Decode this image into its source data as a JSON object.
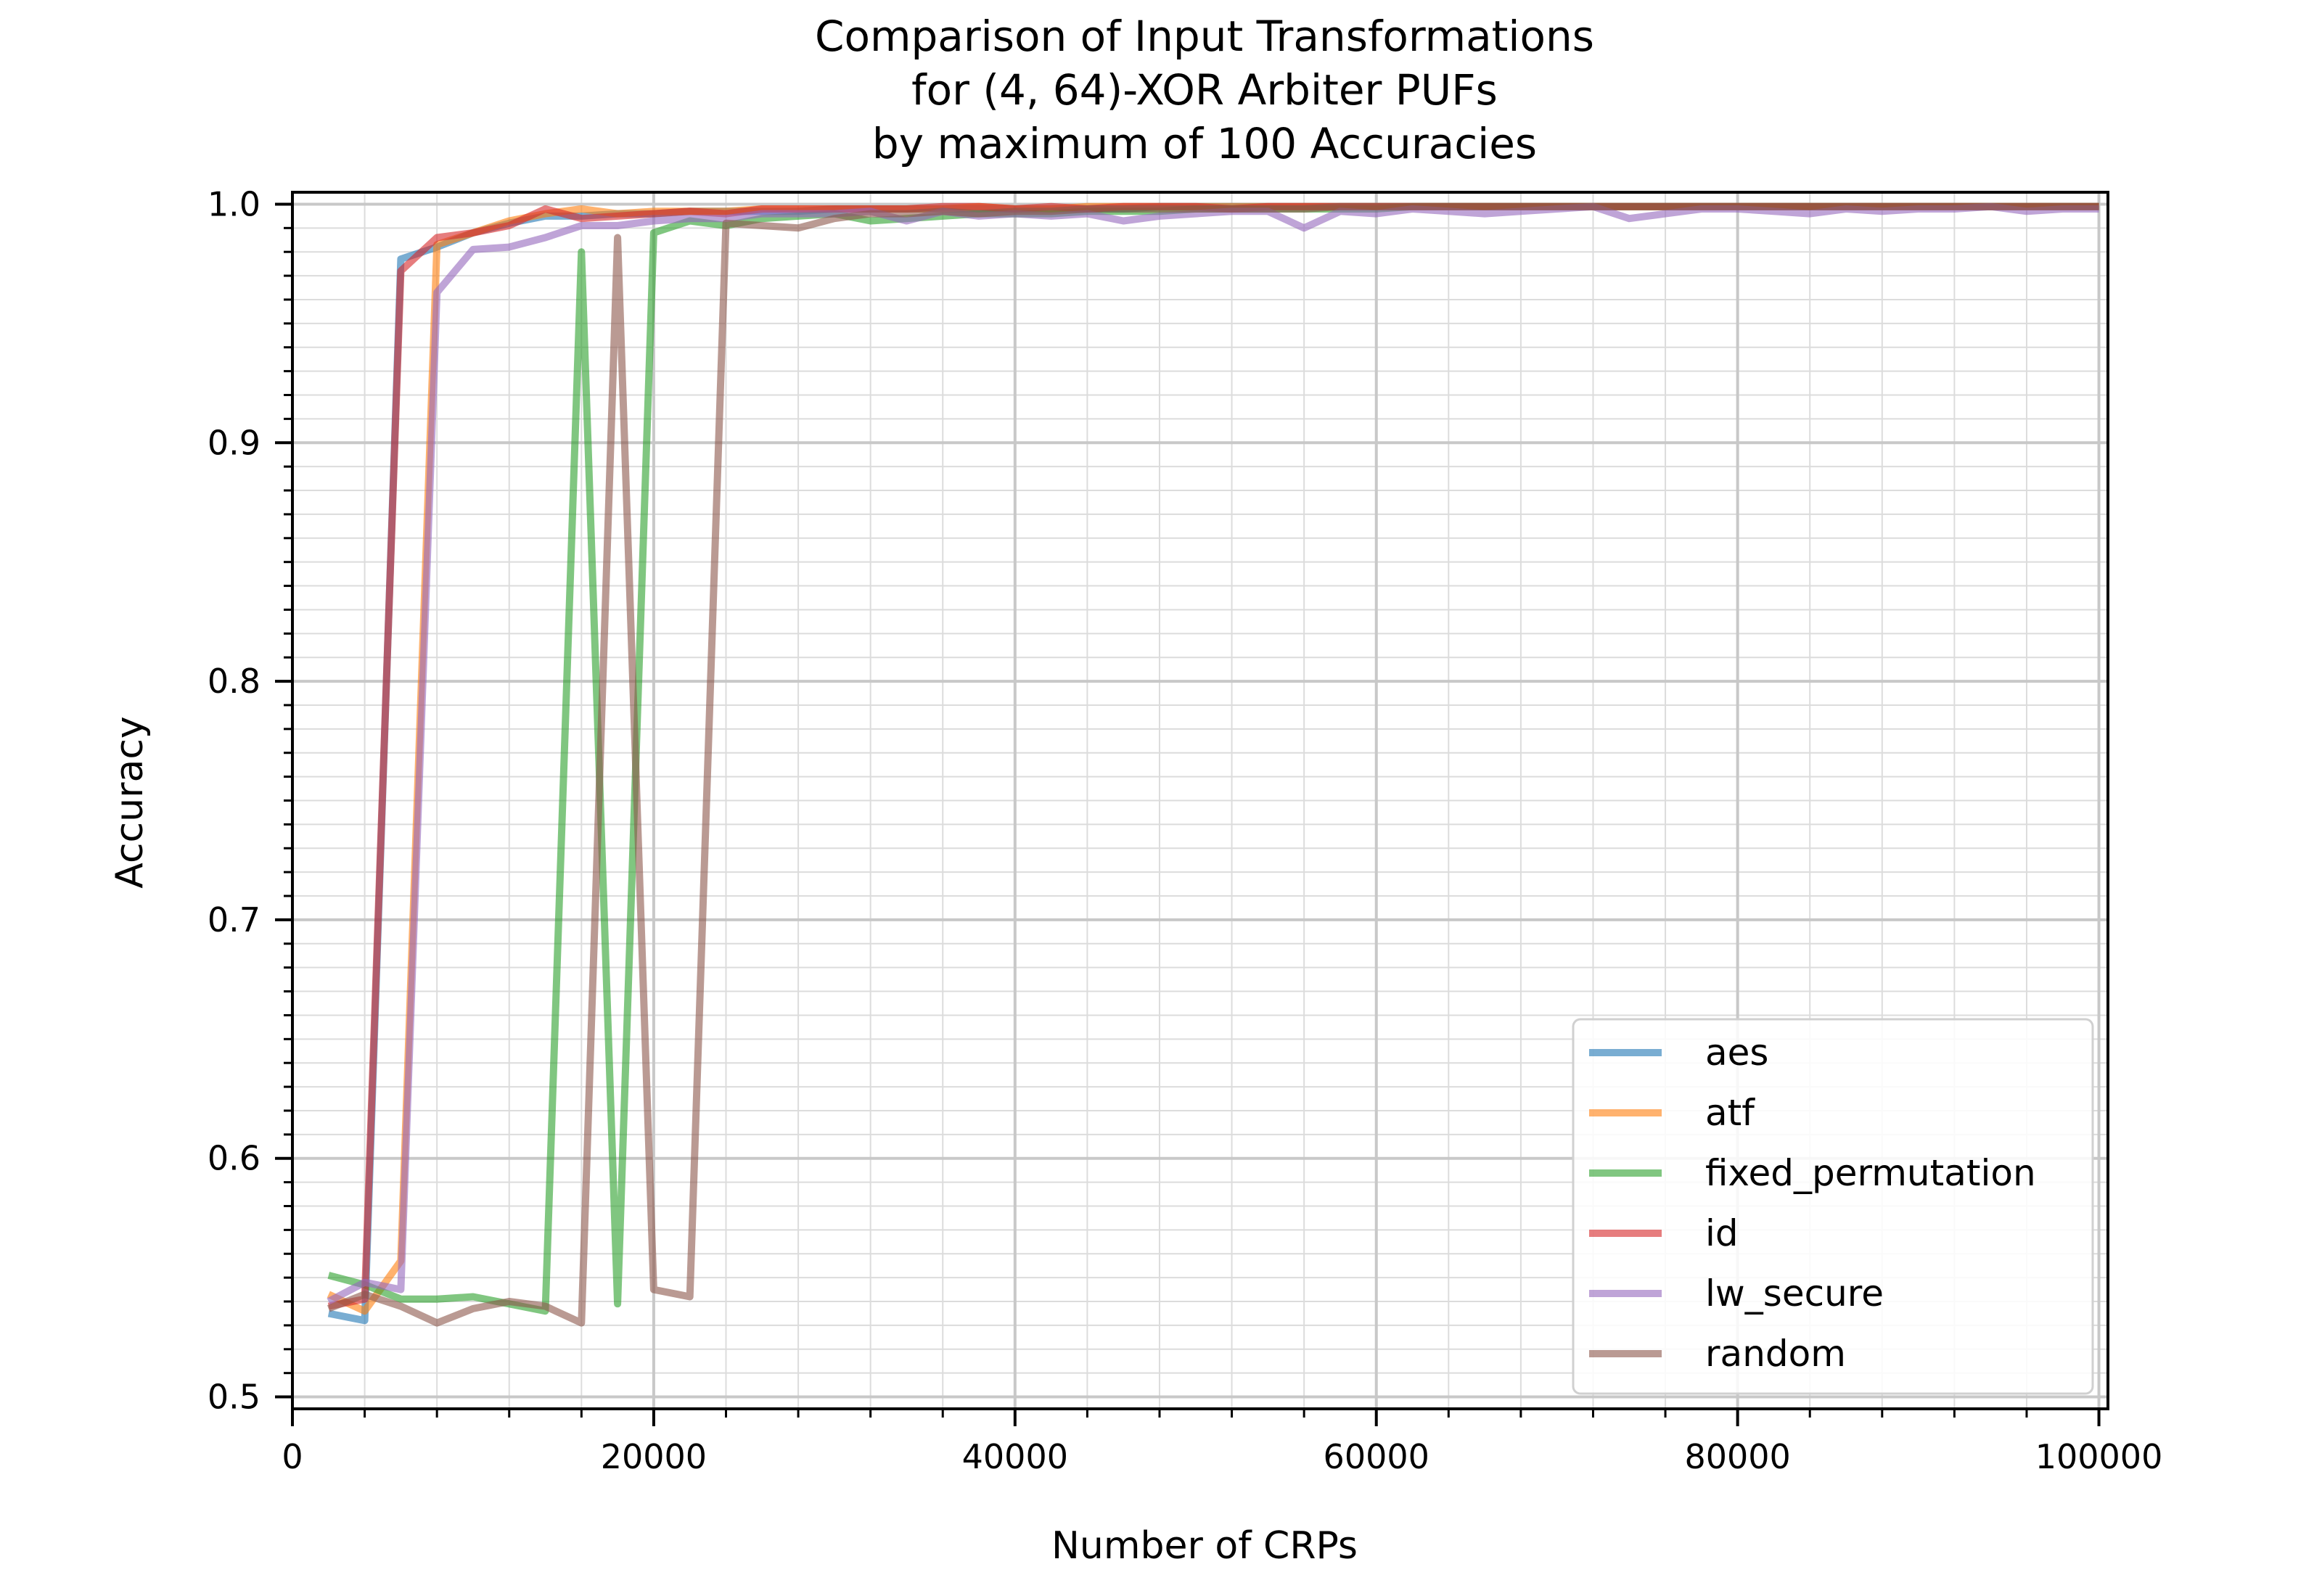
{
  "chart_data": {
    "type": "line",
    "title_lines": [
      "Comparison of Input Transformations",
      "for (4, 64)-XOR Arbiter PUFs",
      "by maximum of 100 Accuracies"
    ],
    "xlabel": "Number of CRPs",
    "ylabel": "Accuracy",
    "xlim": [
      0,
      100500
    ],
    "ylim": [
      0.495,
      1.005
    ],
    "xticks": [
      0,
      20000,
      40000,
      60000,
      80000,
      100000
    ],
    "xtick_labels": [
      "0",
      "20000",
      "40000",
      "60000",
      "80000",
      "100000"
    ],
    "yticks": [
      0.5,
      0.6,
      0.7,
      0.8,
      0.9,
      1.0
    ],
    "ytick_labels": [
      "0.5",
      "0.6",
      "0.7",
      "0.8",
      "0.9",
      "1.0"
    ],
    "grid": true,
    "legend_position": "lower-right",
    "x": [
      2000,
      4000,
      6000,
      8000,
      10000,
      12000,
      14000,
      16000,
      18000,
      20000,
      22000,
      24000,
      26000,
      28000,
      30000,
      32000,
      34000,
      36000,
      38000,
      40000,
      42000,
      44000,
      46000,
      48000,
      50000,
      52000,
      54000,
      56000,
      58000,
      60000,
      62000,
      64000,
      66000,
      68000,
      70000,
      72000,
      74000,
      76000,
      78000,
      80000,
      82000,
      84000,
      86000,
      88000,
      90000,
      92000,
      94000,
      96000,
      98000,
      100000
    ],
    "series": [
      {
        "name": "aes",
        "color": "#1f77b4",
        "values": [
          0.535,
          0.532,
          0.977,
          0.982,
          0.988,
          0.992,
          0.995,
          0.995,
          0.996,
          0.996,
          0.997,
          0.997,
          0.997,
          0.997,
          0.998,
          0.998,
          0.998,
          0.998,
          0.998,
          0.998,
          0.998,
          0.998,
          0.998,
          0.999,
          0.999,
          0.999,
          0.999,
          0.999,
          0.999,
          0.999,
          0.999,
          0.999,
          0.999,
          0.999,
          0.999,
          0.999,
          0.999,
          0.999,
          0.999,
          0.999,
          0.999,
          0.999,
          0.999,
          0.999,
          0.999,
          0.999,
          0.999,
          0.999,
          0.999,
          0.999
        ]
      },
      {
        "name": "atf",
        "color": "#ff7f0e",
        "values": [
          0.543,
          0.536,
          0.557,
          0.983,
          0.988,
          0.993,
          0.996,
          0.998,
          0.996,
          0.997,
          0.997,
          0.997,
          0.998,
          0.998,
          0.998,
          0.998,
          0.998,
          0.998,
          0.999,
          0.998,
          0.998,
          0.999,
          0.999,
          0.999,
          0.999,
          0.999,
          0.999,
          0.999,
          0.999,
          0.999,
          0.999,
          0.999,
          0.999,
          0.999,
          0.999,
          0.999,
          0.999,
          0.999,
          0.999,
          0.999,
          0.999,
          0.999,
          0.999,
          0.999,
          0.999,
          0.999,
          0.999,
          0.999,
          0.999,
          0.999
        ]
      },
      {
        "name": "fixed_permutation",
        "color": "#2ca02c",
        "values": [
          0.551,
          0.547,
          0.541,
          0.541,
          0.542,
          0.539,
          0.536,
          0.98,
          0.539,
          0.988,
          0.993,
          0.991,
          0.994,
          0.995,
          0.996,
          0.993,
          0.994,
          0.995,
          0.996,
          0.996,
          0.996,
          0.997,
          0.997,
          0.997,
          0.998,
          0.998,
          0.998,
          0.998,
          0.998,
          0.998,
          0.999,
          0.999,
          0.999,
          0.999,
          0.999,
          0.999,
          0.999,
          0.999,
          0.999,
          0.999,
          0.999,
          0.999,
          0.999,
          0.999,
          0.999,
          0.999,
          0.999,
          0.999,
          0.999,
          0.999
        ]
      },
      {
        "name": "id",
        "color": "#d62728",
        "values": [
          0.538,
          0.541,
          0.972,
          0.986,
          0.988,
          0.991,
          0.998,
          0.994,
          0.995,
          0.996,
          0.997,
          0.996,
          0.998,
          0.998,
          0.998,
          0.998,
          0.998,
          0.999,
          0.999,
          0.998,
          0.999,
          0.998,
          0.999,
          0.999,
          0.999,
          0.998,
          0.999,
          0.999,
          0.999,
          0.999,
          0.999,
          0.999,
          0.999,
          0.999,
          0.999,
          0.999,
          0.999,
          0.999,
          0.999,
          0.999,
          0.999,
          0.999,
          0.999,
          0.999,
          0.999,
          0.999,
          0.999,
          0.999,
          0.999,
          0.999
        ]
      },
      {
        "name": "lw_secure",
        "color": "#9467bd",
        "values": [
          0.54,
          0.548,
          0.545,
          0.963,
          0.981,
          0.982,
          0.986,
          0.991,
          0.991,
          0.993,
          0.994,
          0.994,
          0.996,
          0.996,
          0.996,
          0.997,
          0.993,
          0.997,
          0.995,
          0.996,
          0.995,
          0.996,
          0.993,
          0.995,
          0.996,
          0.997,
          0.997,
          0.99,
          0.997,
          0.996,
          0.998,
          0.997,
          0.996,
          0.997,
          0.998,
          0.999,
          0.994,
          0.996,
          0.998,
          0.998,
          0.997,
          0.996,
          0.998,
          0.997,
          0.998,
          0.998,
          0.999,
          0.997,
          0.998,
          0.998
        ]
      },
      {
        "name": "random",
        "color": "#8c564b",
        "values": [
          0.537,
          0.543,
          0.538,
          0.531,
          0.537,
          0.54,
          0.538,
          0.531,
          0.986,
          0.545,
          0.542,
          0.992,
          0.991,
          0.99,
          0.994,
          0.996,
          0.996,
          0.997,
          0.996,
          0.997,
          0.997,
          0.998,
          0.998,
          0.998,
          0.998,
          0.998,
          0.998,
          0.998,
          0.999,
          0.999,
          0.999,
          0.999,
          0.999,
          0.999,
          0.999,
          0.999,
          0.999,
          0.999,
          0.999,
          0.999,
          0.999,
          0.999,
          0.999,
          0.999,
          0.999,
          0.999,
          0.999,
          0.999,
          0.999,
          0.999
        ]
      }
    ]
  }
}
